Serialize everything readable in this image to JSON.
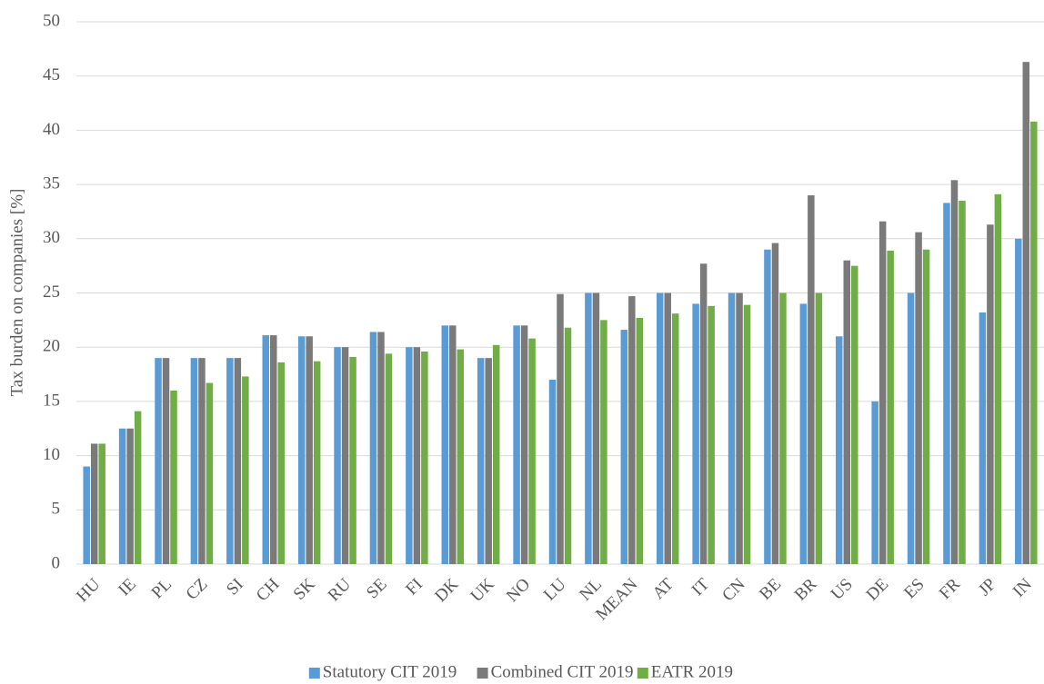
{
  "chart_data": {
    "type": "bar",
    "ylabel": "Tax burden on companies [%]",
    "categories": [
      "HU",
      "IE",
      "PL",
      "CZ",
      "SI",
      "CH",
      "SK",
      "RU",
      "SE",
      "FI",
      "DK",
      "UK",
      "NO",
      "LU",
      "NL",
      "MEAN",
      "AT",
      "IT",
      "CN",
      "BE",
      "BR",
      "US",
      "DE",
      "ES",
      "FR",
      "JP",
      "IN"
    ],
    "series": [
      {
        "name": "Statutory CIT 2019",
        "color": "#5b9bd5",
        "values": [
          9,
          12.5,
          19,
          19,
          19,
          21.1,
          21,
          20,
          21.4,
          20,
          22,
          19,
          22,
          17,
          25,
          21.6,
          25,
          24,
          25,
          29,
          24,
          21,
          15,
          25,
          33.3,
          23.2,
          30
        ]
      },
      {
        "name": "Combined CIT 2019",
        "color": "#7a7a7a",
        "values": [
          11.1,
          12.5,
          19,
          19,
          19,
          21.1,
          21,
          20,
          21.4,
          20,
          22,
          19,
          22,
          24.9,
          25,
          24.7,
          25,
          27.7,
          25,
          29.6,
          34,
          28,
          31.6,
          30.6,
          35.4,
          31.3,
          46.3
        ]
      },
      {
        "name": "EATR 2019",
        "color": "#70ad47",
        "values": [
          11.1,
          14.1,
          16,
          16.7,
          17.3,
          18.6,
          18.7,
          19.1,
          19.4,
          19.6,
          19.8,
          20.2,
          20.8,
          21.8,
          22.5,
          22.7,
          23.1,
          23.8,
          23.9,
          25,
          25,
          27.5,
          28.9,
          29,
          33.5,
          34.1,
          40.8
        ]
      }
    ],
    "ylim": [
      0,
      50
    ],
    "yticks": [
      0,
      5,
      10,
      15,
      20,
      25,
      30,
      35,
      40,
      45,
      50
    ],
    "grid": true,
    "legend": "bottom"
  }
}
